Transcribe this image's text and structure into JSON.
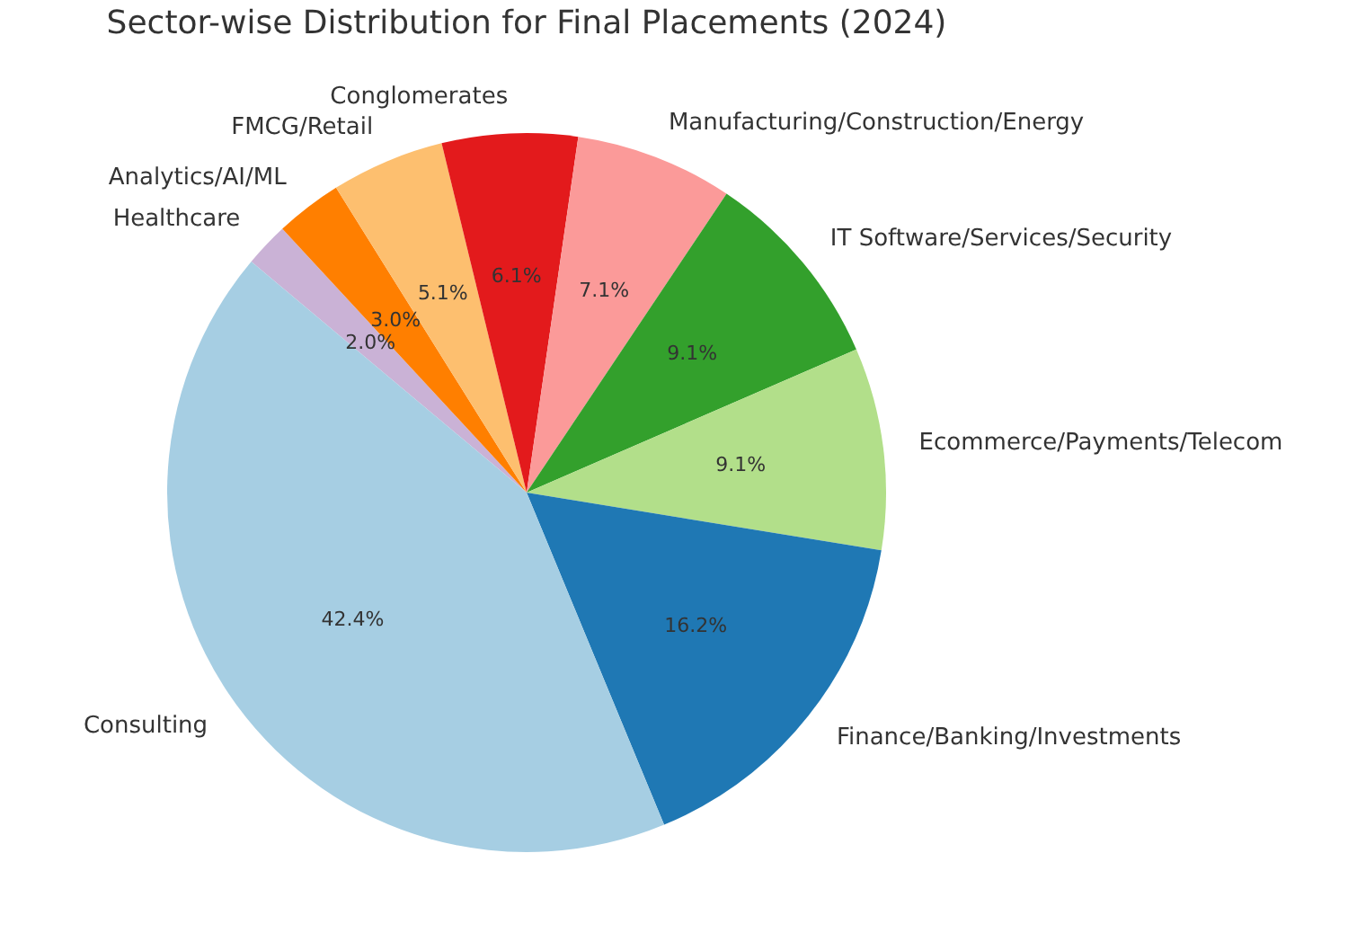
{
  "chart_data": {
    "type": "pie",
    "title": "Sector-wise Distribution for Final Placements (2024)",
    "categories": [
      "Healthcare",
      "Analytics/AI/ML",
      "FMCG/Retail",
      "Conglomerates",
      "Manufacturing/Construction/Energy",
      "IT Software/Services/Security",
      "Ecommerce/Payments/Telecom",
      "Finance/Banking/Investments",
      "Consulting"
    ],
    "values": [
      2.0,
      3.0,
      5.1,
      6.1,
      7.1,
      9.1,
      9.1,
      16.2,
      42.4
    ],
    "colors": [
      "#cab2d6",
      "#ff7f00",
      "#fdbf6f",
      "#e31a1c",
      "#fb9a99",
      "#33a02c",
      "#b2df8a",
      "#1f78b4",
      "#a6cee3"
    ],
    "value_labels": [
      "2.0%",
      "3.0%",
      "5.1%",
      "6.1%",
      "7.1%",
      "9.1%",
      "9.1%",
      "16.2%",
      "42.4%"
    ],
    "legend": false
  }
}
